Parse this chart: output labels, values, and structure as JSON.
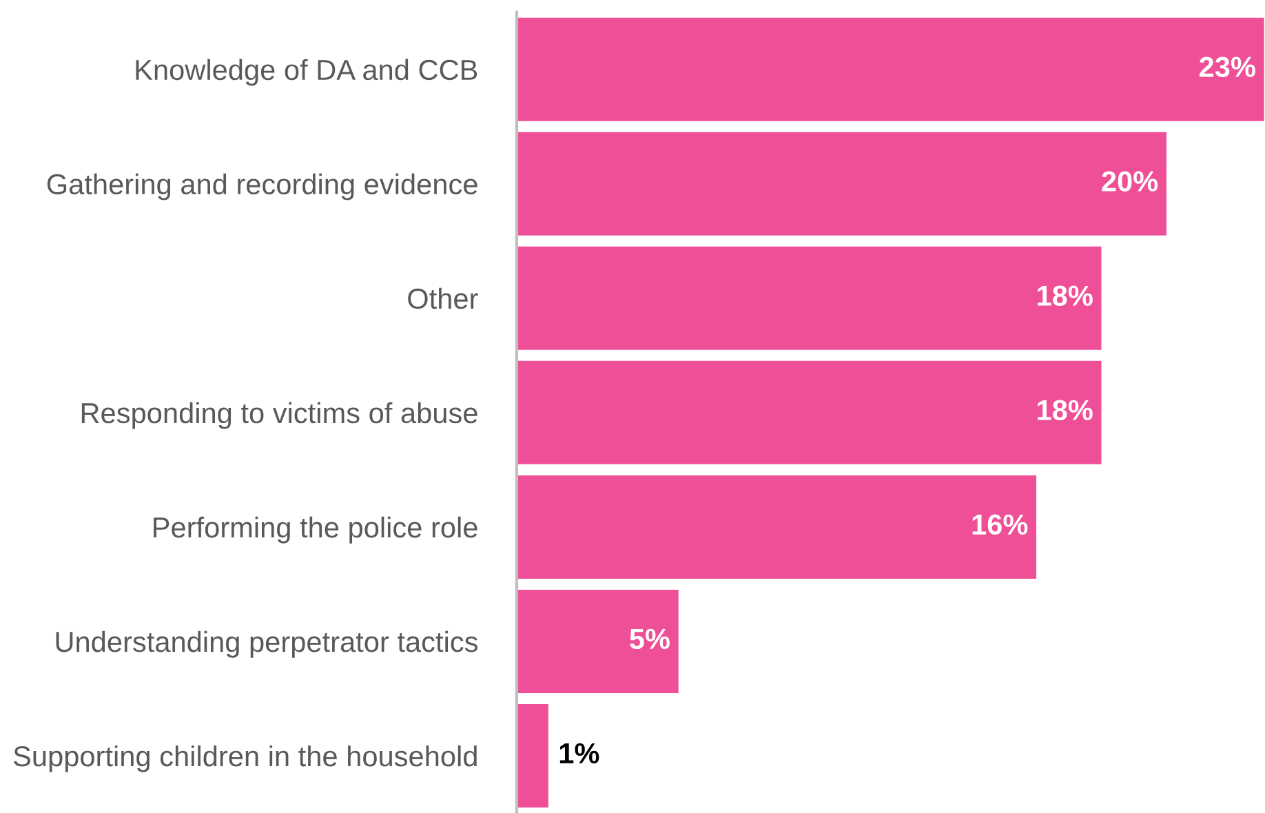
{
  "chart_data": {
    "type": "bar",
    "orientation": "horizontal",
    "categories": [
      "Knowledge of DA and CCB",
      "Gathering and recording evidence",
      "Other",
      "Responding to victims of abuse",
      "Performing the police role",
      "Understanding perpetrator tactics",
      "Supporting children in the household"
    ],
    "values": [
      23,
      20,
      18,
      18,
      16,
      5,
      1
    ],
    "value_labels": [
      "23%",
      "20%",
      "18%",
      "18%",
      "16%",
      "5%",
      "1%"
    ],
    "color": "#ef4f96",
    "xlim": [
      0,
      23
    ],
    "grid": false,
    "legend": false
  }
}
